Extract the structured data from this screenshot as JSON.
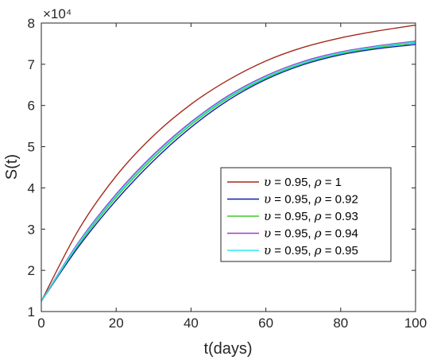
{
  "chart_data": {
    "type": "line",
    "title": "",
    "xlabel": "t(days)",
    "ylabel": "S(t)",
    "xlim": [
      0,
      100
    ],
    "ylim": [
      1,
      8
    ],
    "y_scale_label": "×10⁴",
    "y_multiplier": 10000,
    "xticks": [
      "0",
      "20",
      "40",
      "60",
      "80",
      "100"
    ],
    "yticks": [
      "1",
      "2",
      "3",
      "4",
      "5",
      "6",
      "7",
      "8"
    ],
    "grid": false,
    "legend_position": "lower-right",
    "x": [
      0,
      10,
      20,
      30,
      40,
      50,
      60,
      70,
      80,
      90,
      100
    ],
    "series": [
      {
        "name": "υ = 0.95, ρ = 1",
        "color": "#a2291b",
        "values": [
          1.25,
          2.99,
          4.29,
          5.27,
          6.03,
          6.62,
          7.08,
          7.41,
          7.64,
          7.81,
          7.95
        ]
      },
      {
        "name": "υ = 0.95, ρ = 0.92",
        "color": "#0a1fb3",
        "values": [
          1.25,
          2.58,
          3.7,
          4.66,
          5.47,
          6.13,
          6.63,
          6.99,
          7.23,
          7.38,
          7.48
        ]
      },
      {
        "name": "υ = 0.95, ρ = 0.93",
        "color": "#3fc92a",
        "values": [
          1.25,
          2.63,
          3.77,
          4.73,
          5.53,
          6.18,
          6.66,
          7.02,
          7.26,
          7.41,
          7.52
        ]
      },
      {
        "name": "υ = 0.95, ρ = 0.94",
        "color": "#9b3fc6",
        "values": [
          1.25,
          2.69,
          3.85,
          4.81,
          5.6,
          6.24,
          6.72,
          7.07,
          7.3,
          7.45,
          7.56
        ]
      },
      {
        "name": "υ = 0.95, ρ = 0.95",
        "color": "#2ee8f2",
        "values": [
          1.25,
          2.66,
          3.81,
          4.77,
          5.57,
          6.21,
          6.69,
          7.04,
          7.28,
          7.43,
          7.54
        ]
      }
    ],
    "legend_parts": [
      {
        "pre": "υ",
        "mid": " = 0.95, ",
        "sym": "ρ",
        "post": " = 1"
      },
      {
        "pre": "υ",
        "mid": " = 0.95, ",
        "sym": "ρ",
        "post": " = 0.92"
      },
      {
        "pre": "υ",
        "mid": " = 0.95, ",
        "sym": "ρ",
        "post": " = 0.93"
      },
      {
        "pre": "υ",
        "mid": " = 0.95, ",
        "sym": "ρ",
        "post": " = 0.94"
      },
      {
        "pre": "υ",
        "mid": " = 0.95, ",
        "sym": "ρ",
        "post": " = 0.95"
      }
    ]
  }
}
